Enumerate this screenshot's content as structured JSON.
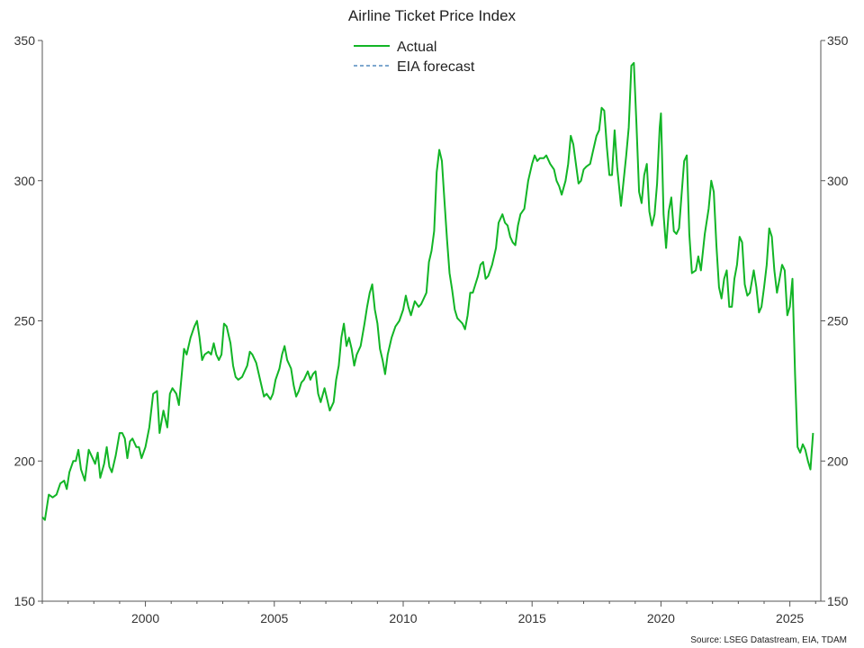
{
  "chart_data": {
    "type": "line",
    "title": "Airline Ticket Price Index",
    "source": "Source: LSEG Datastream, EIA, TDAM",
    "ylim": [
      150,
      350
    ],
    "y_ticks": [
      150,
      200,
      250,
      300,
      350
    ],
    "xlim": [
      1996.0,
      2026.2
    ],
    "x_ticks": [
      2000,
      2005,
      2010,
      2015,
      2020,
      2025
    ],
    "grid": false,
    "legend_position": "top-center",
    "series": [
      {
        "name": "Actual",
        "color": "#12b526",
        "style": "solid",
        "points": [
          [
            1996.0,
            180
          ],
          [
            1996.1,
            179
          ],
          [
            1996.25,
            188
          ],
          [
            1996.4,
            187
          ],
          [
            1996.55,
            188
          ],
          [
            1996.7,
            192
          ],
          [
            1996.85,
            193
          ],
          [
            1996.95,
            190
          ],
          [
            1997.05,
            196
          ],
          [
            1997.2,
            200
          ],
          [
            1997.3,
            200
          ],
          [
            1997.4,
            204
          ],
          [
            1997.5,
            197
          ],
          [
            1997.65,
            193
          ],
          [
            1997.8,
            204
          ],
          [
            1997.95,
            201
          ],
          [
            1998.05,
            199
          ],
          [
            1998.15,
            203
          ],
          [
            1998.25,
            194
          ],
          [
            1998.4,
            199
          ],
          [
            1998.5,
            205
          ],
          [
            1998.6,
            198
          ],
          [
            1998.7,
            196
          ],
          [
            1998.85,
            202
          ],
          [
            1999.0,
            210
          ],
          [
            1999.1,
            210
          ],
          [
            1999.2,
            208
          ],
          [
            1999.3,
            201
          ],
          [
            1999.4,
            207
          ],
          [
            1999.5,
            208
          ],
          [
            1999.65,
            205
          ],
          [
            1999.75,
            205
          ],
          [
            1999.85,
            201
          ],
          [
            2000.0,
            205
          ],
          [
            2000.15,
            212
          ],
          [
            2000.3,
            224
          ],
          [
            2000.45,
            225
          ],
          [
            2000.55,
            210
          ],
          [
            2000.7,
            218
          ],
          [
            2000.85,
            212
          ],
          [
            2000.95,
            224
          ],
          [
            2001.05,
            226
          ],
          [
            2001.2,
            224
          ],
          [
            2001.3,
            220
          ],
          [
            2001.4,
            230
          ],
          [
            2001.5,
            240
          ],
          [
            2001.6,
            238
          ],
          [
            2001.75,
            244
          ],
          [
            2001.9,
            248
          ],
          [
            2002.0,
            250
          ],
          [
            2002.1,
            244
          ],
          [
            2002.2,
            236
          ],
          [
            2002.3,
            238
          ],
          [
            2002.45,
            239
          ],
          [
            2002.55,
            238
          ],
          [
            2002.65,
            242
          ],
          [
            2002.75,
            238
          ],
          [
            2002.85,
            236
          ],
          [
            2002.95,
            238
          ],
          [
            2003.05,
            249
          ],
          [
            2003.15,
            248
          ],
          [
            2003.3,
            242
          ],
          [
            2003.4,
            234
          ],
          [
            2003.5,
            230
          ],
          [
            2003.6,
            229
          ],
          [
            2003.75,
            230
          ],
          [
            2003.85,
            232
          ],
          [
            2003.95,
            234
          ],
          [
            2004.05,
            239
          ],
          [
            2004.15,
            238
          ],
          [
            2004.3,
            235
          ],
          [
            2004.45,
            229
          ],
          [
            2004.6,
            223
          ],
          [
            2004.7,
            224
          ],
          [
            2004.85,
            222
          ],
          [
            2004.95,
            224
          ],
          [
            2005.05,
            229
          ],
          [
            2005.2,
            233
          ],
          [
            2005.3,
            238
          ],
          [
            2005.4,
            241
          ],
          [
            2005.5,
            236
          ],
          [
            2005.65,
            233
          ],
          [
            2005.75,
            227
          ],
          [
            2005.85,
            223
          ],
          [
            2005.95,
            225
          ],
          [
            2006.05,
            228
          ],
          [
            2006.15,
            229
          ],
          [
            2006.3,
            232
          ],
          [
            2006.4,
            229
          ],
          [
            2006.5,
            231
          ],
          [
            2006.6,
            232
          ],
          [
            2006.7,
            224
          ],
          [
            2006.8,
            221
          ],
          [
            2006.95,
            226
          ],
          [
            2007.05,
            222
          ],
          [
            2007.15,
            218
          ],
          [
            2007.3,
            221
          ],
          [
            2007.4,
            229
          ],
          [
            2007.5,
            234
          ],
          [
            2007.6,
            244
          ],
          [
            2007.7,
            249
          ],
          [
            2007.8,
            241
          ],
          [
            2007.9,
            244
          ],
          [
            2008.0,
            240
          ],
          [
            2008.1,
            234
          ],
          [
            2008.2,
            238
          ],
          [
            2008.35,
            241
          ],
          [
            2008.5,
            249
          ],
          [
            2008.6,
            255
          ],
          [
            2008.7,
            260
          ],
          [
            2008.8,
            263
          ],
          [
            2008.9,
            254
          ],
          [
            2009.0,
            249
          ],
          [
            2009.1,
            240
          ],
          [
            2009.2,
            236
          ],
          [
            2009.3,
            231
          ],
          [
            2009.4,
            238
          ],
          [
            2009.55,
            244
          ],
          [
            2009.7,
            248
          ],
          [
            2009.85,
            250
          ],
          [
            2010.0,
            254
          ],
          [
            2010.1,
            259
          ],
          [
            2010.2,
            255
          ],
          [
            2010.3,
            252
          ],
          [
            2010.45,
            257
          ],
          [
            2010.6,
            255
          ],
          [
            2010.7,
            256
          ],
          [
            2010.8,
            258
          ],
          [
            2010.9,
            260
          ],
          [
            2011.0,
            271
          ],
          [
            2011.1,
            275
          ],
          [
            2011.2,
            282
          ],
          [
            2011.3,
            303
          ],
          [
            2011.4,
            311
          ],
          [
            2011.5,
            307
          ],
          [
            2011.6,
            293
          ],
          [
            2011.7,
            279
          ],
          [
            2011.8,
            267
          ],
          [
            2011.9,
            261
          ],
          [
            2012.0,
            254
          ],
          [
            2012.1,
            251
          ],
          [
            2012.2,
            250
          ],
          [
            2012.3,
            249
          ],
          [
            2012.4,
            247
          ],
          [
            2012.5,
            252
          ],
          [
            2012.6,
            260
          ],
          [
            2012.7,
            260
          ],
          [
            2012.8,
            263
          ],
          [
            2012.9,
            266
          ],
          [
            2013.0,
            270
          ],
          [
            2013.1,
            271
          ],
          [
            2013.2,
            265
          ],
          [
            2013.3,
            266
          ],
          [
            2013.45,
            270
          ],
          [
            2013.6,
            276
          ],
          [
            2013.7,
            285
          ],
          [
            2013.85,
            288
          ],
          [
            2013.95,
            285
          ],
          [
            2014.05,
            284
          ],
          [
            2014.15,
            280
          ],
          [
            2014.25,
            278
          ],
          [
            2014.35,
            277
          ],
          [
            2014.45,
            284
          ],
          [
            2014.55,
            288
          ],
          [
            2014.7,
            290
          ],
          [
            2014.85,
            300
          ],
          [
            2015.0,
            306
          ],
          [
            2015.1,
            309
          ],
          [
            2015.2,
            307
          ],
          [
            2015.3,
            308
          ],
          [
            2015.45,
            308
          ],
          [
            2015.55,
            309
          ],
          [
            2015.7,
            306
          ],
          [
            2015.85,
            304
          ],
          [
            2015.95,
            300
          ],
          [
            2016.05,
            298
          ],
          [
            2016.15,
            295
          ],
          [
            2016.3,
            300
          ],
          [
            2016.4,
            306
          ],
          [
            2016.5,
            316
          ],
          [
            2016.6,
            313
          ],
          [
            2016.7,
            306
          ],
          [
            2016.8,
            299
          ],
          [
            2016.9,
            300
          ],
          [
            2017.0,
            304
          ],
          [
            2017.1,
            305
          ],
          [
            2017.25,
            306
          ],
          [
            2017.35,
            310
          ],
          [
            2017.5,
            316
          ],
          [
            2017.6,
            318
          ],
          [
            2017.7,
            326
          ],
          [
            2017.8,
            325
          ],
          [
            2017.9,
            312
          ],
          [
            2018.0,
            302
          ],
          [
            2018.1,
            302
          ],
          [
            2018.2,
            318
          ],
          [
            2018.3,
            305
          ],
          [
            2018.45,
            291
          ],
          [
            2018.55,
            300
          ],
          [
            2018.65,
            309
          ],
          [
            2018.75,
            319
          ],
          [
            2018.85,
            341
          ],
          [
            2018.95,
            342
          ],
          [
            2019.05,
            320
          ],
          [
            2019.15,
            296
          ],
          [
            2019.25,
            292
          ],
          [
            2019.35,
            302
          ],
          [
            2019.45,
            306
          ],
          [
            2019.55,
            289
          ],
          [
            2019.65,
            284
          ],
          [
            2019.75,
            288
          ],
          [
            2019.85,
            299
          ],
          [
            2019.95,
            319
          ],
          [
            2020.0,
            324
          ],
          [
            2020.1,
            288
          ],
          [
            2020.2,
            276
          ],
          [
            2020.3,
            289
          ],
          [
            2020.4,
            294
          ],
          [
            2020.5,
            282
          ],
          [
            2020.6,
            281
          ],
          [
            2020.7,
            283
          ],
          [
            2020.8,
            295
          ],
          [
            2020.9,
            307
          ],
          [
            2021.0,
            309
          ],
          [
            2021.1,
            281
          ],
          [
            2021.2,
            267
          ],
          [
            2021.35,
            268
          ],
          [
            2021.45,
            273
          ],
          [
            2021.55,
            268
          ],
          [
            2021.7,
            281
          ],
          [
            2021.85,
            290
          ],
          [
            2021.95,
            300
          ],
          [
            2022.05,
            296
          ],
          [
            2022.15,
            277
          ],
          [
            2022.25,
            262
          ],
          [
            2022.35,
            258
          ],
          [
            2022.45,
            265
          ],
          [
            2022.55,
            268
          ],
          [
            2022.65,
            255
          ],
          [
            2022.75,
            255
          ],
          [
            2022.85,
            265
          ],
          [
            2022.95,
            270
          ],
          [
            2023.05,
            280
          ],
          [
            2023.15,
            278
          ],
          [
            2023.25,
            263
          ],
          [
            2023.35,
            259
          ],
          [
            2023.45,
            260
          ],
          [
            2023.6,
            268
          ],
          [
            2023.7,
            262
          ],
          [
            2023.8,
            253
          ],
          [
            2023.9,
            255
          ],
          [
            2024.0,
            262
          ],
          [
            2024.1,
            270
          ],
          [
            2024.2,
            283
          ],
          [
            2024.3,
            280
          ],
          [
            2024.4,
            268
          ],
          [
            2024.5,
            260
          ],
          [
            2024.6,
            265
          ],
          [
            2024.7,
            270
          ],
          [
            2024.8,
            268
          ],
          [
            2024.9,
            252
          ],
          [
            2025.0,
            255
          ],
          [
            2025.1,
            265
          ],
          [
            2025.2,
            231
          ],
          [
            2025.3,
            205
          ],
          [
            2025.4,
            203
          ],
          [
            2025.5,
            206
          ],
          [
            2025.6,
            204
          ],
          [
            2025.7,
            200
          ],
          [
            2025.8,
            197
          ],
          [
            2025.9,
            210
          ]
        ]
      },
      {
        "name": "EIA forecast",
        "color": "#7ea8cf",
        "style": "dashed",
        "points": []
      }
    ]
  }
}
